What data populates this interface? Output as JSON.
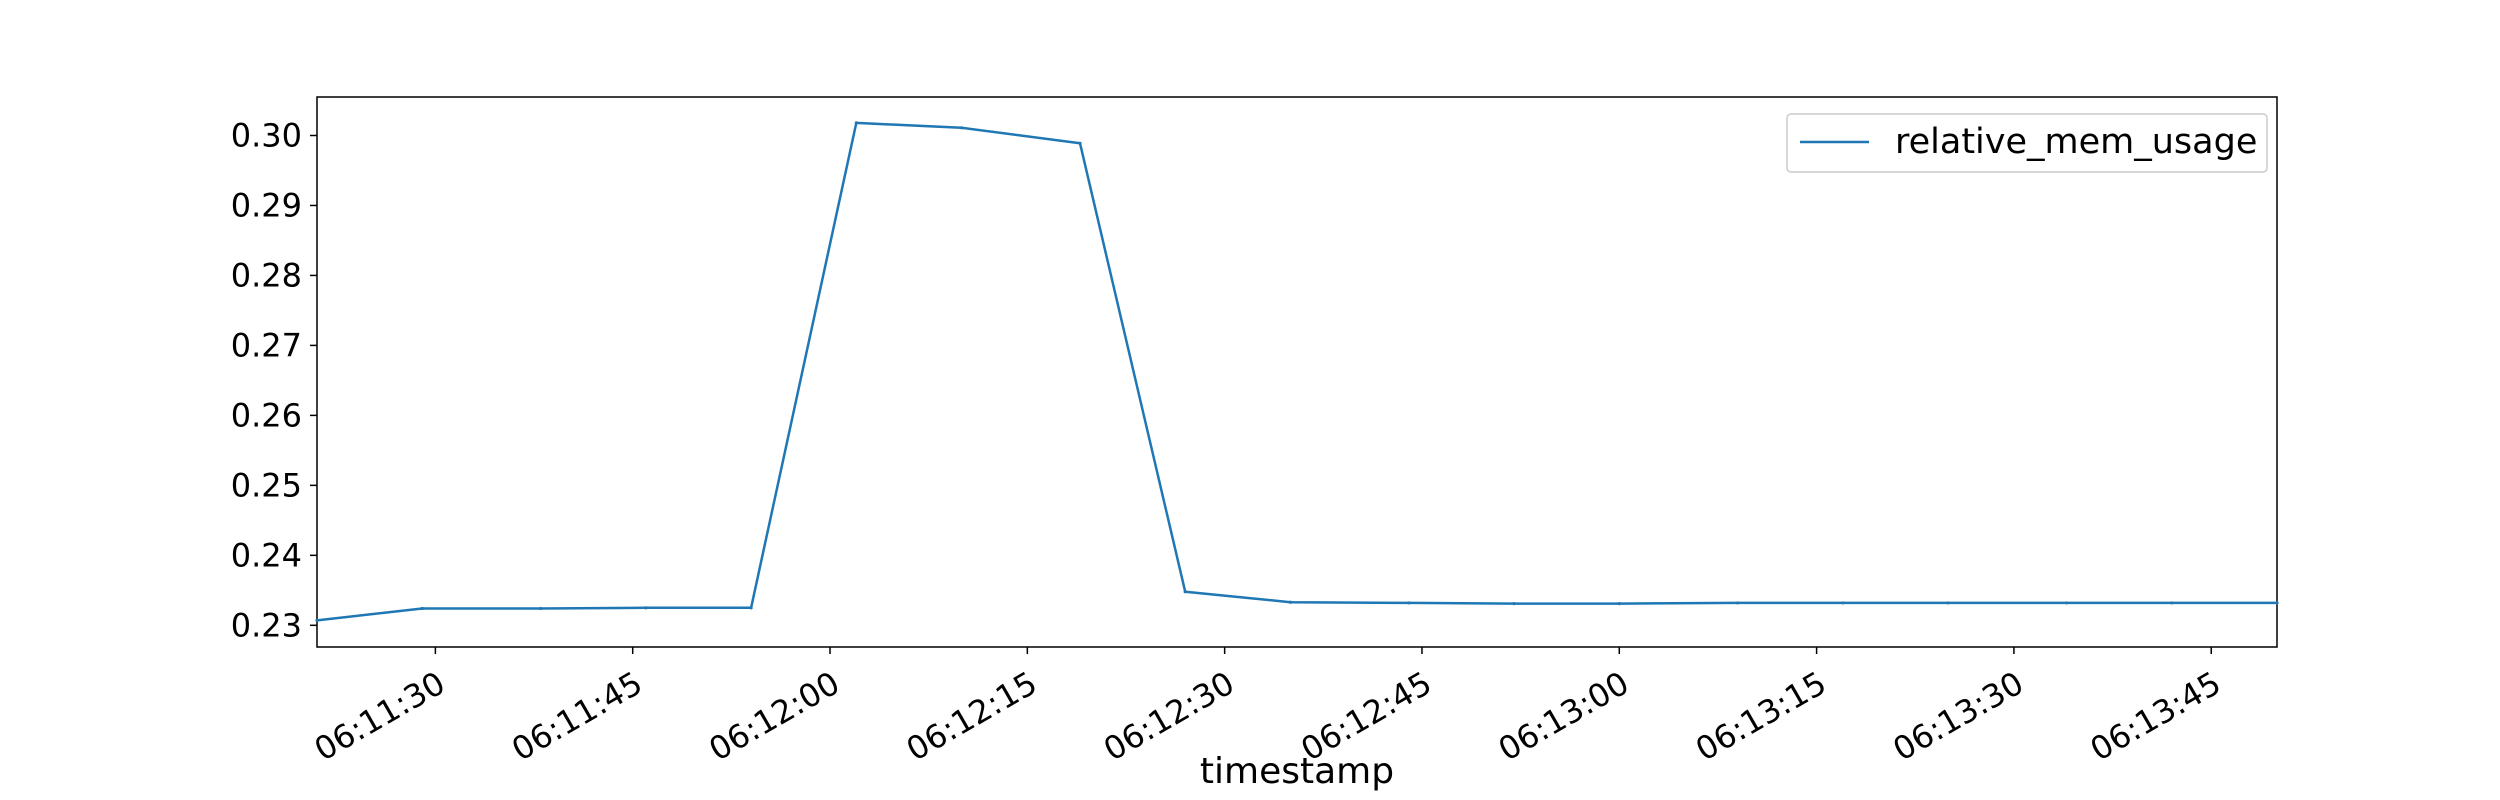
{
  "chart_data": {
    "type": "line",
    "title": "",
    "xlabel": "timestamp",
    "ylabel": "",
    "x_tick_labels": [
      "06:11:30",
      "06:11:45",
      "06:12:00",
      "06:12:15",
      "06:12:30",
      "06:12:45",
      "06:13:00",
      "06:13:15",
      "06:13:30",
      "06:13:45"
    ],
    "y_tick_labels": [
      "0.23",
      "0.24",
      "0.25",
      "0.26",
      "0.27",
      "0.28",
      "0.29",
      "0.30"
    ],
    "xlim": [
      "06:11:21",
      "06:13:50"
    ],
    "ylim": [
      0.2269,
      0.3055
    ],
    "grid": false,
    "legend_position": "top-right",
    "series": [
      {
        "name": "relative_mem_usage",
        "color": "#1f77b4",
        "x": [
          "06:11:21",
          "06:11:29",
          "06:11:38",
          "06:11:46",
          "06:11:54",
          "06:12:02",
          "06:12:10",
          "06:12:19",
          "06:12:27",
          "06:12:35",
          "06:12:44",
          "06:12:52",
          "06:13:00",
          "06:13:09",
          "06:13:17",
          "06:13:25",
          "06:13:34",
          "06:13:42",
          "06:13:50"
        ],
        "y": [
          0.2307,
          0.2324,
          0.2324,
          0.2325,
          0.2325,
          0.3018,
          0.3011,
          0.2989,
          0.2348,
          0.2333,
          0.2332,
          0.2331,
          0.2331,
          0.2332,
          0.2332,
          0.2332,
          0.2332,
          0.2332,
          0.2332
        ]
      }
    ]
  }
}
